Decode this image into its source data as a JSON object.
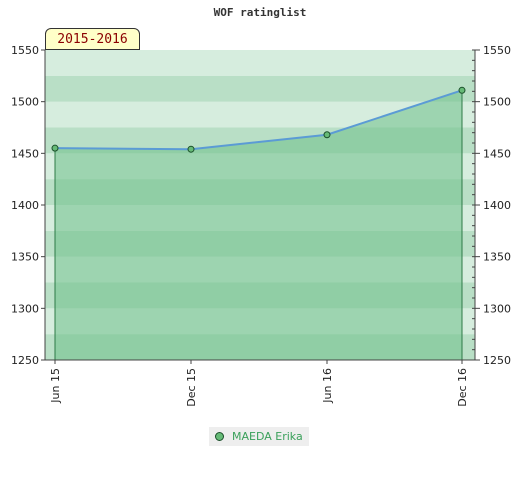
{
  "chart_data": {
    "type": "area",
    "title": "WOF ratinglist",
    "badge": "2015-2016",
    "categories": [
      "Jun 15",
      "Dec 15",
      "Jun 16",
      "Dec 16"
    ],
    "series": [
      {
        "name": "MAEDA Erika",
        "values": [
          1455,
          1454,
          1468,
          1511
        ]
      }
    ],
    "ylim": [
      1250,
      1550
    ],
    "yticks": [
      1250,
      1300,
      1350,
      1400,
      1450,
      1500,
      1550
    ],
    "ytick_labels": [
      "1250",
      "1300",
      "1350",
      "1400",
      "1450",
      "1500",
      "1550"
    ],
    "xlabel": "",
    "ylabel": "",
    "grid": true,
    "legend_position": "bottom-center",
    "colors": {
      "line": "#5b9bd5",
      "marker_fill": "#66bb77",
      "marker_stroke": "#1a4f2a",
      "area_fill": "#6fbf8a",
      "band_dark": "#b3dcc1",
      "band_light": "#d3ebdc",
      "plot_background": "#f0f8f2"
    }
  }
}
